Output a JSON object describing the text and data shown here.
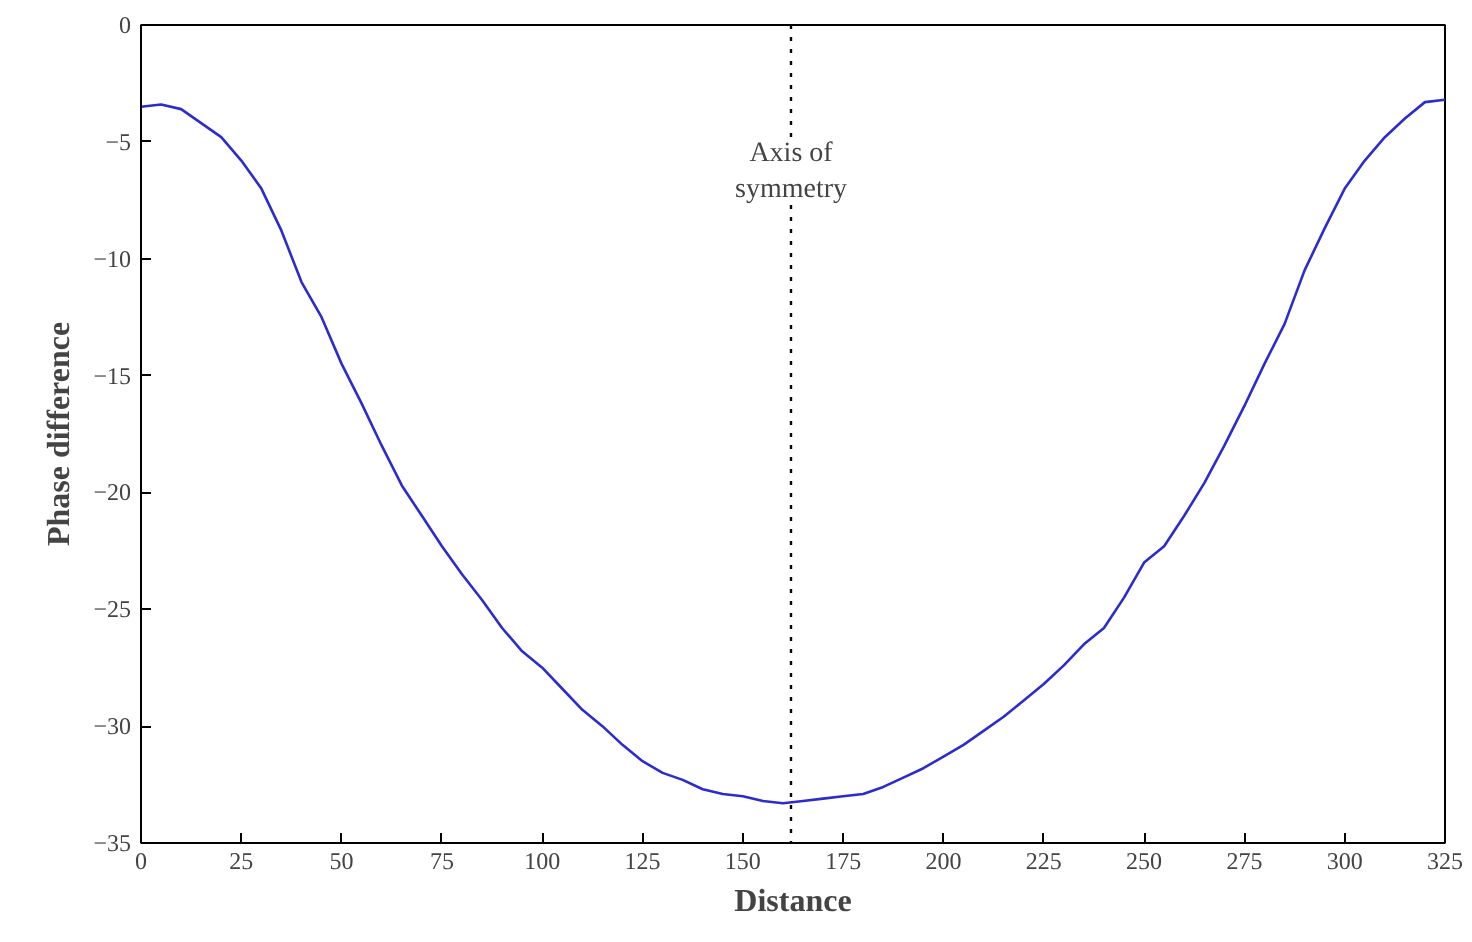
{
  "chart_data": {
    "type": "line",
    "xlabel": "Distance",
    "ylabel": "Phase difference",
    "x": [
      0,
      5,
      10,
      15,
      20,
      25,
      30,
      35,
      40,
      45,
      50,
      55,
      60,
      65,
      70,
      75,
      80,
      85,
      90,
      95,
      100,
      105,
      110,
      115,
      120,
      125,
      130,
      135,
      140,
      145,
      150,
      155,
      160,
      165,
      170,
      175,
      180,
      185,
      190,
      195,
      200,
      205,
      210,
      215,
      220,
      225,
      230,
      235,
      240,
      245,
      250,
      255,
      260,
      265,
      270,
      275,
      280,
      285,
      290,
      295,
      300,
      305,
      310,
      315,
      320,
      325
    ],
    "series": [
      {
        "color": "#2b2bd0",
        "values": [
          -3.5,
          -3.4,
          -3.6,
          -4.2,
          -4.8,
          -5.8,
          -7.0,
          -8.8,
          -11.0,
          -12.5,
          -14.5,
          -16.2,
          -18.0,
          -19.7,
          -21.0,
          -22.3,
          -23.5,
          -24.6,
          -25.8,
          -26.8,
          -27.5,
          -28.4,
          -29.3,
          -30.0,
          -30.8,
          -31.5,
          -32.0,
          -32.3,
          -32.7,
          -32.9,
          -33.0,
          -33.2,
          -33.3,
          -33.2,
          -33.1,
          -33.0,
          -32.9,
          -32.6,
          -32.2,
          -31.8,
          -31.3,
          -30.8,
          -30.2,
          -29.6,
          -28.9,
          -28.2,
          -27.4,
          -26.5,
          -25.8,
          -24.5,
          -23.0,
          -22.3,
          -21.0,
          -19.6,
          -18.0,
          -16.3,
          -14.5,
          -12.8,
          -10.5,
          -8.7,
          -7.0,
          -5.8,
          -4.8,
          -4.0,
          -3.3,
          -3.2
        ]
      }
    ],
    "xlim": [
      0,
      325
    ],
    "ylim": [
      -35,
      0
    ],
    "xticks": [
      0,
      25,
      50,
      75,
      100,
      125,
      150,
      175,
      200,
      225,
      250,
      275,
      300,
      325
    ],
    "yticks": [
      -35,
      -30,
      -25,
      -20,
      -15,
      -10,
      -5,
      0
    ],
    "grid": false,
    "line_style": "solid",
    "ref_lines": [
      {
        "axis": "x",
        "value": 162,
        "label": "Axis of\nsymmetry",
        "color": "#000000",
        "line_style": "dotted"
      }
    ]
  }
}
